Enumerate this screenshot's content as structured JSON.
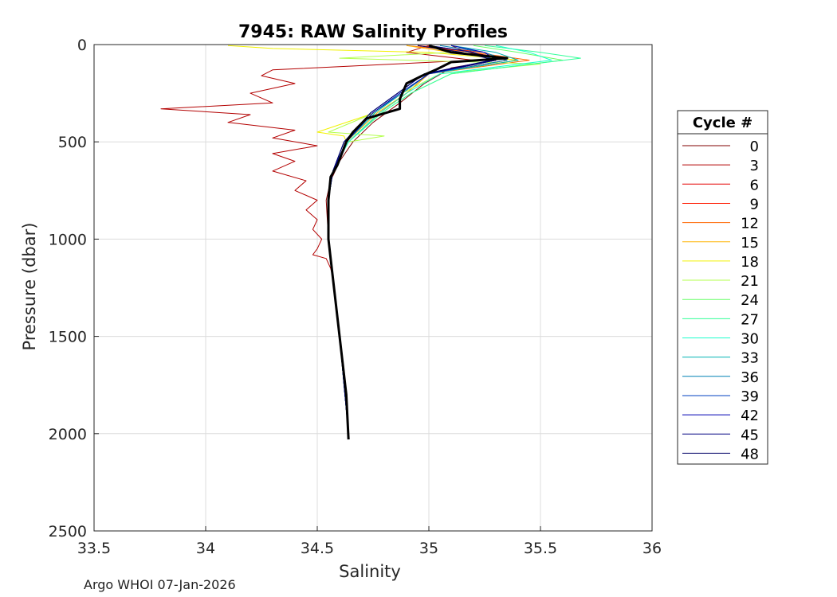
{
  "chart_data": {
    "type": "line",
    "title": "7945: RAW Salinity Profiles",
    "xlabel": "Salinity",
    "ylabel": "Pressure (dbar)",
    "xlim": [
      33.5,
      36
    ],
    "ylim": [
      0,
      2500
    ],
    "y_reversed": true,
    "grid": true,
    "xticks": [
      "33.5",
      "34",
      "34.5",
      "35",
      "35.5",
      "36"
    ],
    "yticks": [
      "0",
      "500",
      "1000",
      "1500",
      "2000",
      "2500"
    ],
    "legend": {
      "title": "Cycle #",
      "placement": "right",
      "entries": [
        "0",
        "3",
        "6",
        "9",
        "12",
        "15",
        "18",
        "21",
        "24",
        "27",
        "30",
        "33",
        "36",
        "39",
        "42",
        "45",
        "48"
      ],
      "colors": [
        "#800000",
        "#b30000",
        "#e60000",
        "#ff1a00",
        "#ff6600",
        "#ffb300",
        "#f2f200",
        "#b3ff4d",
        "#66ff66",
        "#33ff99",
        "#1affcc",
        "#00b3b3",
        "#0080b3",
        "#0040c0",
        "#0000b3",
        "#000080",
        "#000066"
      ]
    },
    "series": [
      {
        "name": "0",
        "color": "#800000",
        "pressure": [
          5,
          30,
          60,
          80,
          120,
          200,
          300,
          400,
          500,
          600,
          650,
          700,
          800,
          1000,
          1200,
          1500,
          1800,
          2000
        ],
        "salinity": [
          35.1,
          35.15,
          35.25,
          35.3,
          35.1,
          34.98,
          34.87,
          34.75,
          34.66,
          34.6,
          34.58,
          34.56,
          34.54,
          34.55,
          34.57,
          34.6,
          34.63,
          34.64
        ]
      },
      {
        "name": "3",
        "color": "#b30000",
        "pressure": [
          5,
          40,
          80,
          130,
          160,
          200,
          250,
          300,
          330,
          360,
          400,
          440,
          480,
          520,
          560,
          600,
          650,
          700,
          750,
          800,
          850,
          900,
          950,
          1000,
          1050,
          1080,
          1100,
          1150,
          1200
        ],
        "salinity": [
          35.0,
          34.9,
          35.2,
          34.3,
          34.25,
          34.4,
          34.2,
          34.3,
          33.8,
          34.2,
          34.1,
          34.4,
          34.3,
          34.5,
          34.3,
          34.4,
          34.3,
          34.45,
          34.4,
          34.5,
          34.45,
          34.5,
          34.48,
          34.52,
          34.5,
          34.48,
          34.54,
          34.56,
          34.57
        ]
      },
      {
        "name": "6",
        "color": "#e60000",
        "pressure": [
          5,
          40,
          80,
          150,
          250,
          350,
          500,
          650,
          800,
          1000,
          1500,
          2000
        ],
        "salinity": [
          34.95,
          35.2,
          35.35,
          35.0,
          34.9,
          34.78,
          34.64,
          34.57,
          34.55,
          34.55,
          34.6,
          34.64
        ]
      },
      {
        "name": "9",
        "color": "#ff1a00",
        "pressure": [
          5,
          40,
          80,
          150,
          250,
          350,
          500,
          650,
          800,
          1000,
          1500,
          2000
        ],
        "salinity": [
          34.95,
          35.25,
          35.3,
          35.0,
          34.9,
          34.78,
          34.64,
          34.57,
          34.55,
          34.55,
          34.6,
          34.64
        ]
      },
      {
        "name": "12",
        "color": "#ff6600",
        "pressure": [
          5,
          40,
          80,
          150,
          250,
          350,
          500,
          650,
          800,
          1000,
          1500,
          2000
        ],
        "salinity": [
          34.9,
          35.2,
          35.45,
          35.0,
          34.9,
          34.78,
          34.64,
          34.57,
          34.55,
          34.55,
          34.6,
          34.64
        ]
      },
      {
        "name": "15",
        "color": "#ffb300",
        "pressure": [
          5,
          40,
          80,
          150,
          250,
          350,
          500,
          650,
          800,
          1000,
          1500,
          2000
        ],
        "salinity": [
          34.9,
          35.1,
          35.4,
          35.0,
          34.9,
          34.77,
          34.63,
          34.57,
          34.55,
          34.55,
          34.6,
          34.64
        ]
      },
      {
        "name": "18",
        "color": "#f2f200",
        "pressure": [
          5,
          20,
          40,
          80,
          150,
          250,
          350,
          450,
          470,
          500,
          650,
          800,
          1000,
          1500,
          2000
        ],
        "salinity": [
          34.1,
          34.3,
          35.0,
          35.4,
          35.0,
          34.88,
          34.76,
          34.5,
          34.62,
          34.63,
          34.57,
          34.55,
          34.55,
          34.6,
          34.64
        ]
      },
      {
        "name": "21",
        "color": "#b3ff4d",
        "pressure": [
          5,
          40,
          70,
          100,
          150,
          250,
          350,
          450,
          470,
          500,
          650,
          800,
          1000,
          1500,
          2000
        ],
        "salinity": [
          35.0,
          35.1,
          34.6,
          35.5,
          35.05,
          34.88,
          34.76,
          34.55,
          34.8,
          34.64,
          34.57,
          34.55,
          34.55,
          34.6,
          34.64
        ]
      },
      {
        "name": "24",
        "color": "#66ff66",
        "pressure": [
          5,
          40,
          80,
          150,
          250,
          350,
          500,
          650,
          800,
          1000,
          1500,
          2000
        ],
        "salinity": [
          35.2,
          35.4,
          35.6,
          35.1,
          34.92,
          34.79,
          34.64,
          34.57,
          34.55,
          34.55,
          34.6,
          34.64
        ]
      },
      {
        "name": "27",
        "color": "#33ff99",
        "pressure": [
          5,
          40,
          70,
          150,
          250,
          350,
          500,
          650,
          800,
          1000,
          1500,
          2000
        ],
        "salinity": [
          35.25,
          35.5,
          35.68,
          35.1,
          34.92,
          34.79,
          34.64,
          34.57,
          34.55,
          34.55,
          34.6,
          34.64
        ]
      },
      {
        "name": "30",
        "color": "#1affcc",
        "pressure": [
          5,
          40,
          80,
          150,
          250,
          350,
          500,
          650,
          800,
          1000,
          1500,
          2000
        ],
        "salinity": [
          35.3,
          35.45,
          35.55,
          35.05,
          34.9,
          34.78,
          34.64,
          34.57,
          34.55,
          34.55,
          34.6,
          34.64
        ]
      },
      {
        "name": "33",
        "color": "#00b3b3",
        "pressure": [
          5,
          40,
          80,
          150,
          250,
          350,
          500,
          650,
          800,
          1000,
          1500,
          2000
        ],
        "salinity": [
          35.1,
          35.3,
          35.4,
          35.0,
          34.88,
          34.76,
          34.63,
          34.57,
          34.55,
          34.55,
          34.6,
          34.64
        ]
      },
      {
        "name": "36",
        "color": "#0080b3",
        "pressure": [
          5,
          40,
          80,
          150,
          250,
          350,
          500,
          650,
          800,
          1000,
          1500,
          2000
        ],
        "salinity": [
          35.05,
          35.25,
          35.35,
          35.0,
          34.88,
          34.75,
          34.63,
          34.57,
          34.55,
          34.55,
          34.6,
          34.64
        ]
      },
      {
        "name": "39",
        "color": "#0040c0",
        "pressure": [
          5,
          40,
          80,
          150,
          250,
          350,
          500,
          650,
          800,
          1000,
          1500,
          2000
        ],
        "salinity": [
          35.0,
          35.2,
          35.3,
          34.98,
          34.86,
          34.74,
          34.62,
          34.57,
          34.55,
          34.55,
          34.6,
          34.64
        ]
      },
      {
        "name": "42",
        "color": "#0000b3",
        "pressure": [
          5,
          40,
          80,
          150,
          250,
          350,
          500,
          650,
          800,
          1000,
          1500,
          2000
        ],
        "salinity": [
          35.1,
          35.25,
          35.3,
          35.0,
          34.87,
          34.75,
          34.63,
          34.57,
          34.55,
          34.55,
          34.6,
          34.64
        ]
      },
      {
        "name": "45",
        "color": "#000080",
        "pressure": [
          5,
          40,
          80,
          150,
          250,
          350,
          500,
          650,
          800,
          1000,
          1500,
          2000
        ],
        "salinity": [
          35.0,
          35.2,
          35.28,
          34.98,
          34.86,
          34.74,
          34.62,
          34.57,
          34.55,
          34.55,
          34.6,
          34.64
        ]
      },
      {
        "name": "48",
        "color": "#000066",
        "pressure": [
          5,
          40,
          80,
          150,
          250,
          350,
          500,
          650,
          800,
          1000,
          1500,
          2000
        ],
        "salinity": [
          34.95,
          35.15,
          35.3,
          34.98,
          34.86,
          34.74,
          34.62,
          34.57,
          34.55,
          34.55,
          34.6,
          34.64
        ]
      }
    ],
    "mean_profile": {
      "color": "#000000",
      "pressure": [
        5,
        40,
        70,
        90,
        130,
        160,
        200,
        280,
        330,
        380,
        450,
        500,
        560,
        620,
        680,
        800,
        1000,
        1200,
        1500,
        1800,
        2030
      ],
      "salinity": [
        35.0,
        35.1,
        35.35,
        35.1,
        35.03,
        34.97,
        34.9,
        34.87,
        34.87,
        34.72,
        34.66,
        34.63,
        34.61,
        34.59,
        34.56,
        34.55,
        34.55,
        34.57,
        34.6,
        34.63,
        34.64
      ]
    }
  },
  "footer": "Argo WHOI 07-Jan-2026"
}
